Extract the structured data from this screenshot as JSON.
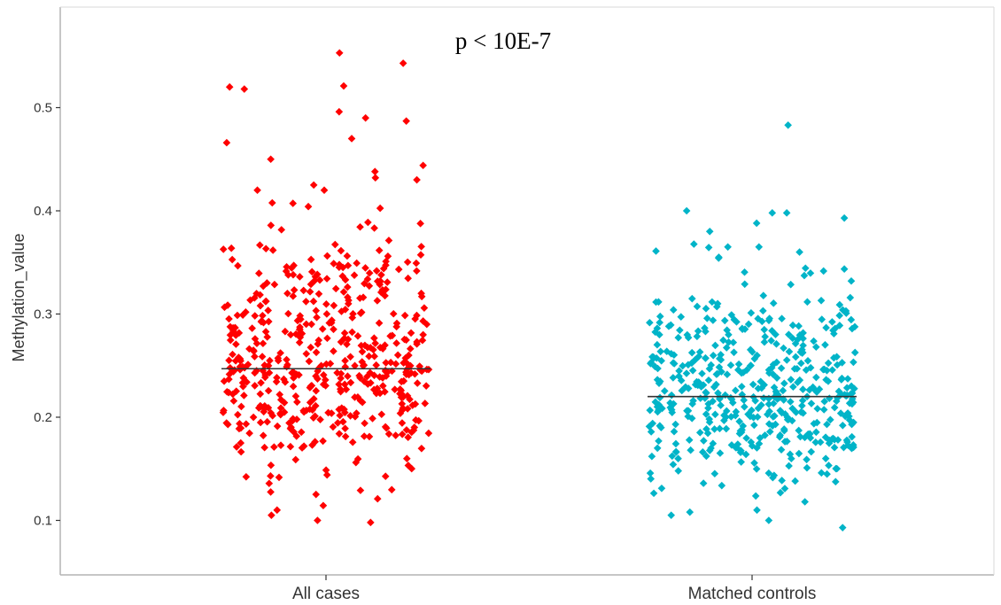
{
  "chart_data": {
    "type": "scatter",
    "subtype": "jitter strip plot with mean line per group",
    "title": "",
    "annotation": "p < 10E-7",
    "xlabel": "",
    "ylabel": "Methylation_value",
    "categories": [
      "All cases",
      "Matched controls"
    ],
    "y_ticks": [
      0.1,
      0.2,
      0.3,
      0.4,
      0.5
    ],
    "y_tick_labels": [
      "0.1",
      "0.2",
      "0.3",
      "0.4",
      "0.5"
    ],
    "ylim": [
      0.045,
      0.6
    ],
    "grid": false,
    "legend": "none",
    "series": [
      {
        "category": "All cases",
        "color": "#FF0000",
        "marker": "diamond",
        "mean": 0.247,
        "n_points": 520,
        "y_range": [
          0.098,
          0.553
        ],
        "highlighted_points": [
          0.553,
          0.543,
          0.521,
          0.52,
          0.518,
          0.496,
          0.49,
          0.487,
          0.47,
          0.466,
          0.45,
          0.444,
          0.438,
          0.432,
          0.43,
          0.425,
          0.42,
          0.42,
          0.098,
          0.1,
          0.105,
          0.11
        ]
      },
      {
        "category": "Matched controls",
        "color": "#00B4C8",
        "marker": "diamond",
        "mean": 0.22,
        "n_points": 500,
        "y_range": [
          0.093,
          0.483
        ],
        "highlighted_points": [
          0.483,
          0.4,
          0.398,
          0.398,
          0.393,
          0.388,
          0.38,
          0.365,
          0.36,
          0.093,
          0.1,
          0.105,
          0.108
        ]
      }
    ]
  }
}
